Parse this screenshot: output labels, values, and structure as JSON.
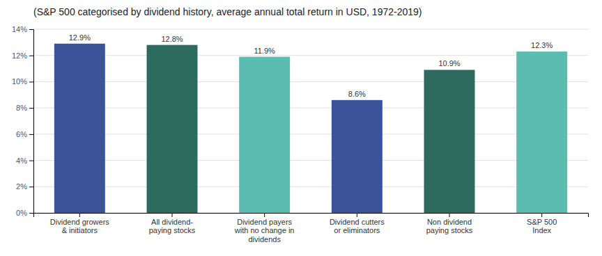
{
  "chart_data": {
    "type": "bar",
    "title": "(S&P 500 categorised by dividend history, average annual total return in USD, 1972-2019)",
    "categories": [
      "Dividend growers\n& initiators",
      "All dividend-\npaying stocks",
      "Dividend payers\nwith no change in\ndividends",
      "Dividend cutters\nor eliminators",
      "Non dividend\npaying stocks",
      "S&P 500\nIndex"
    ],
    "values": [
      12.9,
      12.8,
      11.9,
      8.6,
      10.9,
      12.3
    ],
    "value_labels": [
      "12.9%",
      "12.8%",
      "11.9%",
      "8.6%",
      "10.9%",
      "12.3%"
    ],
    "colors": [
      "#3b5499",
      "#2d6b5e",
      "#5bbcb0",
      "#3b5499",
      "#2d6b5e",
      "#5bbcb0"
    ],
    "ylim": [
      0,
      14
    ],
    "yticks": [
      {
        "value": 0,
        "label": "0%"
      },
      {
        "value": 2,
        "label": "2%"
      },
      {
        "value": 4,
        "label": "4%"
      },
      {
        "value": 6,
        "label": "6%"
      },
      {
        "value": 8,
        "label": "8%"
      },
      {
        "value": 10,
        "label": "10%"
      },
      {
        "value": 12,
        "label": "12%"
      },
      {
        "value": 14,
        "label": "14%"
      }
    ],
    "grid": true,
    "data_labels": true
  }
}
